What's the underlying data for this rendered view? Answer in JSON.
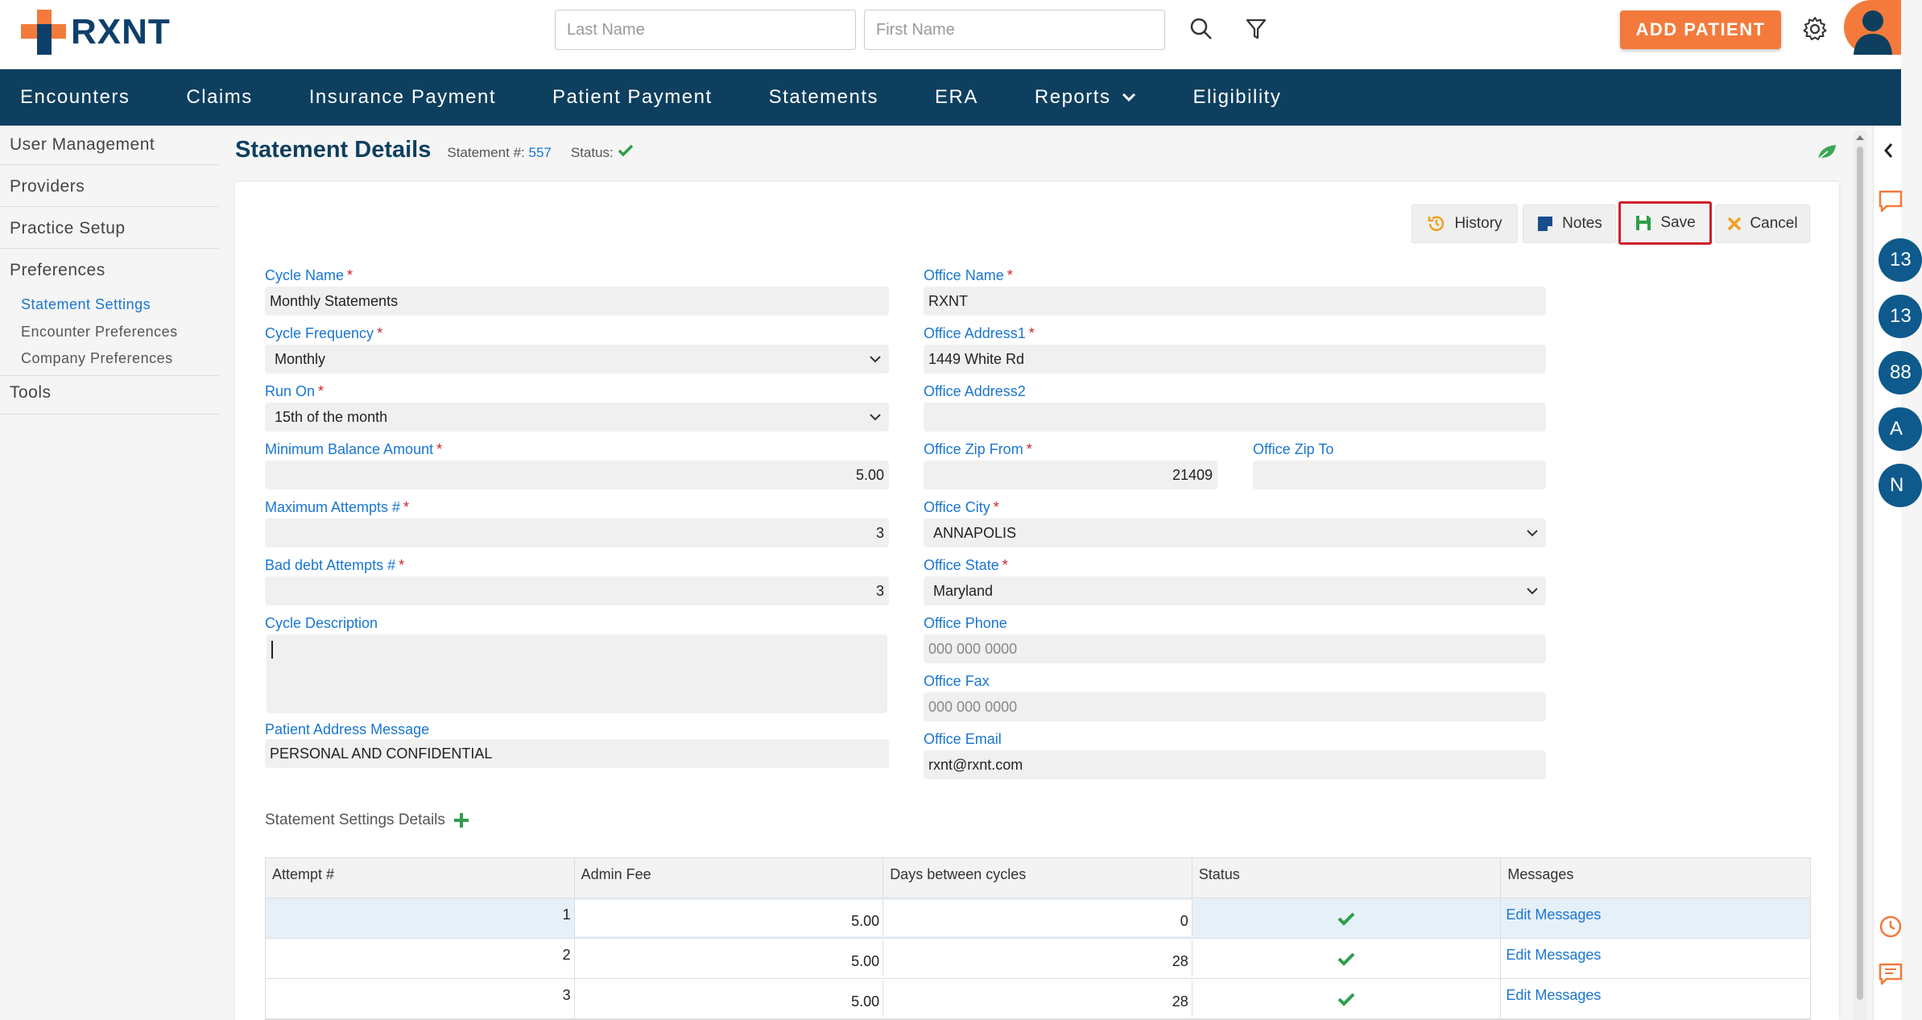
{
  "brand": {
    "name": "RXNT",
    "orange": "#f37a3b",
    "navy": "#0e3f5f"
  },
  "header": {
    "last_name_placeholder": "Last Name",
    "first_name_placeholder": "First Name",
    "add_patient_label": "ADD PATIENT",
    "icons": [
      "search-icon",
      "filter-icon",
      "gear-icon",
      "user-avatar"
    ]
  },
  "nav": {
    "items": [
      "Encounters",
      "Claims",
      "Insurance Payment",
      "Patient Payment",
      "Statements",
      "ERA",
      "Reports",
      "Eligibility"
    ]
  },
  "sidebar": {
    "user_management": "User Management",
    "providers": "Providers",
    "practice_setup": "Practice Setup",
    "preferences": "Preferences",
    "statement_settings": "Statement Settings",
    "encounter_preferences": "Encounter Preferences",
    "company_preferences": "Company Preferences",
    "tools": "Tools"
  },
  "page": {
    "title": "Statement Details",
    "statement_label": "Statement #:",
    "statement_number": "557",
    "status_label": "Status:"
  },
  "toolbar": {
    "history": "History",
    "notes": "Notes",
    "save": "Save",
    "cancel": "Cancel"
  },
  "form": {
    "cycle_name": {
      "label": "Cycle Name",
      "value": "Monthly Statements"
    },
    "cycle_frequency": {
      "label": "Cycle Frequency",
      "value": "Monthly"
    },
    "run_on": {
      "label": "Run On",
      "value": "15th of the month"
    },
    "min_balance": {
      "label": "Minimum Balance Amount",
      "value": "5.00"
    },
    "max_attempts": {
      "label": "Maximum Attempts #",
      "value": "3"
    },
    "bad_debt": {
      "label": "Bad debt Attempts #",
      "value": "3"
    },
    "cycle_description": {
      "label": "Cycle Description",
      "value": ""
    },
    "patient_address_message": {
      "label": "Patient Address Message",
      "value": "PERSONAL AND CONFIDENTIAL"
    },
    "office_name": {
      "label": "Office Name",
      "value": "RXNT"
    },
    "office_address1": {
      "label": "Office Address1",
      "value": "1449 White Rd"
    },
    "office_address2": {
      "label": "Office Address2",
      "value": ""
    },
    "office_zip_from": {
      "label": "Office Zip From",
      "value": "21409"
    },
    "office_zip_to": {
      "label": "Office Zip To",
      "value": ""
    },
    "office_city": {
      "label": "Office City",
      "value": "ANNAPOLIS"
    },
    "office_state": {
      "label": "Office State",
      "value": "Maryland"
    },
    "office_phone": {
      "label": "Office Phone",
      "placeholder": "000 000 0000"
    },
    "office_fax": {
      "label": "Office Fax",
      "placeholder": "000 000 0000"
    },
    "office_email": {
      "label": "Office Email",
      "value": "rxnt@rxnt.com"
    }
  },
  "details": {
    "title": "Statement Settings Details",
    "columns": [
      "Attempt #",
      "Admin Fee",
      "Days between cycles",
      "Status",
      "Messages"
    ],
    "rows": [
      {
        "attempt": "1",
        "admin_fee": "5.00",
        "days": "0",
        "status": "active",
        "messages": "Edit Messages"
      },
      {
        "attempt": "2",
        "admin_fee": "5.00",
        "days": "28",
        "status": "active",
        "messages": "Edit Messages"
      },
      {
        "attempt": "3",
        "admin_fee": "5.00",
        "days": "28",
        "status": "active",
        "messages": "Edit Messages"
      }
    ]
  },
  "right_panel": {
    "badges": [
      "13",
      "13",
      "88",
      "A",
      "N"
    ]
  }
}
